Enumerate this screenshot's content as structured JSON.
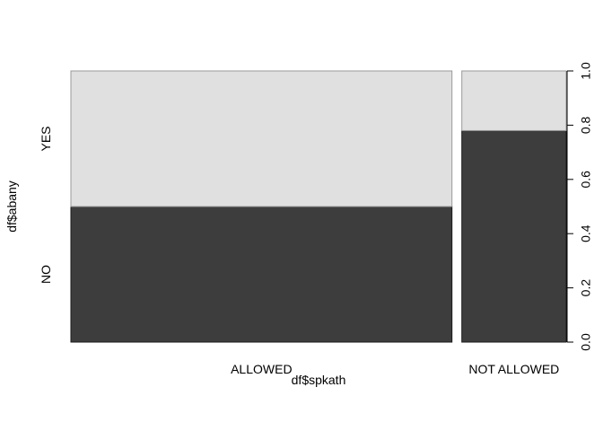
{
  "chart_data": {
    "type": "bar",
    "subtype": "spineplot",
    "xlabel": "df$spkath",
    "ylabel": "df$abany",
    "categories": [
      "ALLOWED",
      "NOT ALLOWED"
    ],
    "category_widths": [
      0.785,
      0.215
    ],
    "stack_levels": [
      "NO",
      "YES"
    ],
    "series": [
      {
        "level": "NO",
        "values": [
          0.5,
          0.78
        ]
      },
      {
        "level": "YES",
        "values": [
          0.5,
          0.22
        ]
      }
    ],
    "ylim": [
      0,
      1
    ],
    "right_axis_ticks": [
      "0.0",
      "0.2",
      "0.4",
      "0.6",
      "0.8",
      "1.0"
    ],
    "grid": false,
    "colors": {
      "NO": "#3d3d3d",
      "YES": "#e0e0e0",
      "border": "#1a1a1a"
    }
  }
}
